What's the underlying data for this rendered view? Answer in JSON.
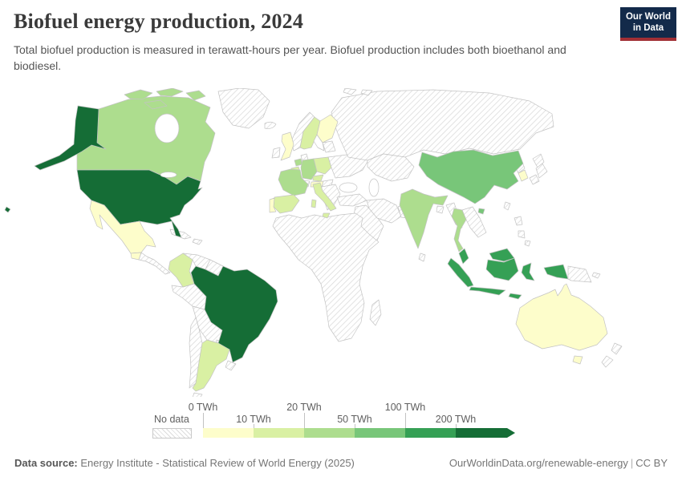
{
  "header": {
    "title": "Biofuel energy production, 2024",
    "subtitle": "Total biofuel production is measured in terawatt-hours per year. Biofuel production includes both bioethanol and biodiesel.",
    "logo": {
      "line1": "Our World",
      "line2": "in Data",
      "bg_color": "#132a4a",
      "accent_color": "#a12f35"
    }
  },
  "chart_data": {
    "type": "choropleth-map",
    "title": "Biofuel energy production, 2024",
    "year": 2024,
    "unit": "TWh",
    "legend": {
      "no_data_label": "No data",
      "tick_labels": [
        "0 TWh",
        "10 TWh",
        "20 TWh",
        "50 TWh",
        "100 TWh",
        "200 TWh"
      ],
      "bin_ranges": [
        "0-10 TWh",
        "10-20 TWh",
        "20-50 TWh",
        "50-100 TWh",
        "100-200 TWh",
        "200+ TWh"
      ],
      "bin_colors": [
        "#fdfdcb",
        "#d9f0a3",
        "#addd8e",
        "#78c679",
        "#35a055",
        "#156d36"
      ],
      "hatch_line_color": "#d9d9d9"
    },
    "countries": [
      {
        "id": "united-states",
        "name": "United States",
        "bin": 5
      },
      {
        "id": "brazil",
        "name": "Brazil",
        "bin": 5
      },
      {
        "id": "indonesia",
        "name": "Indonesia",
        "bin": 4
      },
      {
        "id": "malaysia",
        "name": "Malaysia",
        "bin": 4
      },
      {
        "id": "china",
        "name": "China",
        "bin": 3
      },
      {
        "id": "canada",
        "name": "Canada",
        "bin": 2
      },
      {
        "id": "germany",
        "name": "Germany",
        "bin": 2
      },
      {
        "id": "france",
        "name": "France",
        "bin": 2
      },
      {
        "id": "india",
        "name": "India",
        "bin": 2
      },
      {
        "id": "thailand",
        "name": "Thailand",
        "bin": 2
      },
      {
        "id": "netherlands",
        "name": "Netherlands",
        "bin": 2
      },
      {
        "id": "argentina",
        "name": "Argentina",
        "bin": 1
      },
      {
        "id": "colombia",
        "name": "Colombia",
        "bin": 1
      },
      {
        "id": "spain",
        "name": "Spain",
        "bin": 1
      },
      {
        "id": "italy",
        "name": "Italy",
        "bin": 1
      },
      {
        "id": "poland",
        "name": "Poland",
        "bin": 1
      },
      {
        "id": "sweden",
        "name": "Sweden",
        "bin": 1
      },
      {
        "id": "belgium",
        "name": "Belgium",
        "bin": 1
      },
      {
        "id": "czechia",
        "name": "Czechia",
        "bin": 1
      },
      {
        "id": "mexico",
        "name": "Mexico",
        "bin": 0
      },
      {
        "id": "australia",
        "name": "Australia",
        "bin": 0
      },
      {
        "id": "united-kingdom",
        "name": "United Kingdom",
        "bin": 0
      },
      {
        "id": "finland",
        "name": "Finland",
        "bin": 0
      },
      {
        "id": "south-korea",
        "name": "South Korea",
        "bin": 0
      },
      {
        "id": "portugal",
        "name": "Portugal",
        "bin": 0
      },
      {
        "id": "austria",
        "name": "Austria",
        "bin": 0
      },
      {
        "id": "guatemala",
        "name": "Guatemala",
        "bin": 0
      }
    ],
    "no_data_regions": [
      "Greenland",
      "Iceland",
      "Ireland",
      "Norway",
      "Denmark",
      "Switzerland",
      "Eastern Europe",
      "Balkans",
      "Russia",
      "Central Asia",
      "Middle East",
      "Africa",
      "Madagascar",
      "Pakistan",
      "Sri Lanka",
      "Myanmar",
      "Vietnam / Laos / Cambodia",
      "Philippines",
      "Japan",
      "North Korea",
      "Papua New Guinea",
      "New Zealand",
      "Peru",
      "Bolivia",
      "Chile",
      "Venezuela",
      "Guyanas",
      "Paraguay",
      "Uruguay",
      "Central America",
      "Cuba",
      "Caribbean"
    ]
  },
  "footer": {
    "source_label": "Data source:",
    "source_text": " Energy Institute - Statistical Review of World Energy (2025)",
    "url": "OurWorldinData.org/renewable-energy",
    "separator": "|",
    "license": "CC BY"
  }
}
